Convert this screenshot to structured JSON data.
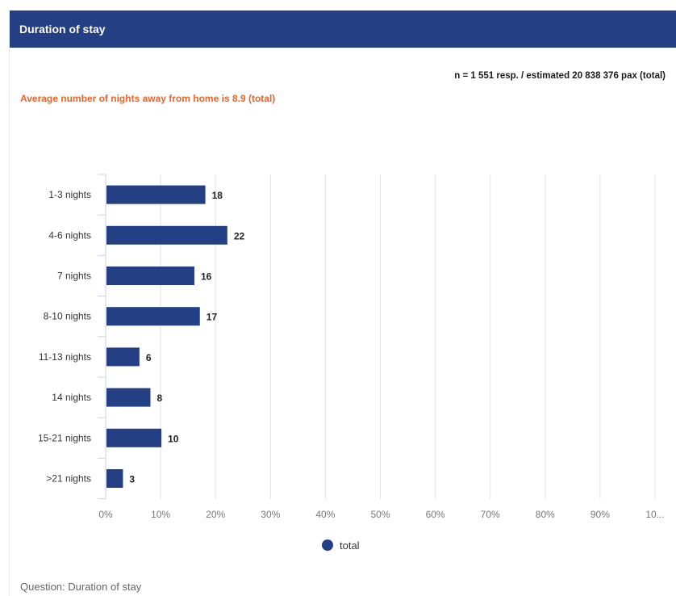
{
  "header": {
    "title": "Duration of stay"
  },
  "sample_info": "n = 1 551 resp. / estimated 20 838 376 pax (total)",
  "average_note": "Average number of nights away from home is 8.9 (total)",
  "question": "Question: Duration of stay",
  "colors": {
    "header_bg": "#243f83",
    "bar": "#243f83",
    "accent": "#e8662a"
  },
  "chart_data": {
    "type": "bar",
    "orientation": "horizontal",
    "categories": [
      "1-3 nights",
      "4-6 nights",
      "7 nights",
      "8-10 nights",
      "11-13 nights",
      "14 nights",
      "15-21 nights",
      ">21 nights"
    ],
    "series": [
      {
        "name": "total",
        "values": [
          18,
          22,
          16,
          17,
          6,
          8,
          10,
          3
        ]
      }
    ],
    "xlim": [
      0,
      100
    ],
    "x_ticks": [
      "0%",
      "10%",
      "20%",
      "30%",
      "40%",
      "50%",
      "60%",
      "70%",
      "80%",
      "90%",
      "10..."
    ],
    "grid": true,
    "legend": "bottom-center"
  }
}
